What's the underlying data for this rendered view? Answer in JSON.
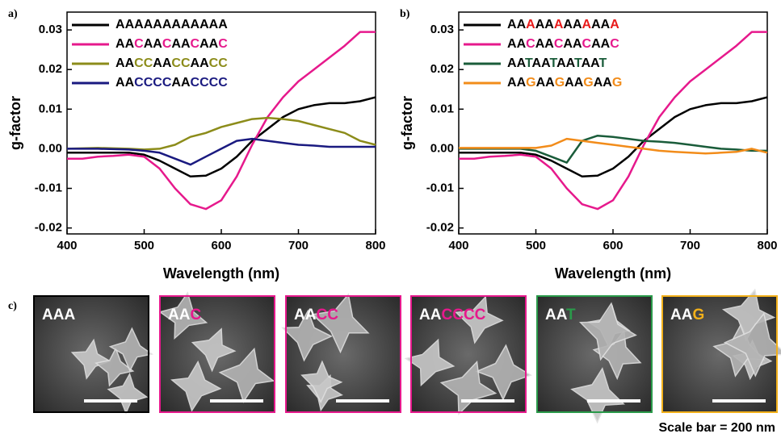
{
  "chart_data": [
    {
      "type": "line",
      "label": "a)",
      "xlabel": "Wavelength (nm)",
      "ylabel": "g-factor",
      "x": [
        400,
        420,
        440,
        460,
        480,
        500,
        520,
        540,
        560,
        580,
        600,
        620,
        640,
        660,
        680,
        700,
        720,
        740,
        760,
        780,
        800
      ],
      "xlim": [
        400,
        800
      ],
      "xticks": [
        400,
        500,
        600,
        700,
        800
      ],
      "ylim": [
        -0.0215,
        0.0345
      ],
      "yticks": [
        -0.02,
        -0.01,
        {
          "value": 0,
          "label": "0.00"
        },
        0.01,
        0.02,
        0.03
      ],
      "series": [
        {
          "name": "AAAAAAAAAAAA",
          "color": "#000000",
          "values": [
            -0.001,
            -0.001,
            -0.001,
            -0.001,
            -0.001,
            -0.0015,
            -0.003,
            -0.005,
            -0.007,
            -0.0068,
            -0.005,
            -0.002,
            0.002,
            0.005,
            0.008,
            0.01,
            0.011,
            0.0115,
            0.0115,
            0.012,
            0.013
          ]
        },
        {
          "name": "AACAACAACAAC",
          "color": "#e6198c",
          "values": [
            -0.0025,
            -0.0025,
            -0.002,
            -0.0018,
            -0.0015,
            -0.002,
            -0.005,
            -0.01,
            -0.014,
            -0.0152,
            -0.013,
            -0.007,
            0.001,
            0.008,
            0.013,
            0.017,
            0.02,
            0.023,
            0.026,
            0.0295,
            0.0295
          ]
        },
        {
          "name": "AACCAACCAACC",
          "color": "#8c8c1a",
          "values": [
            0,
            0.0001,
            0.0002,
            0.0001,
            0,
            -0.0002,
            0,
            0.001,
            0.003,
            0.004,
            0.0055,
            0.0065,
            0.0075,
            0.0078,
            0.0075,
            0.007,
            0.006,
            0.005,
            0.004,
            0.002,
            0.001
          ]
        },
        {
          "name": "AACCCCAACCCC",
          "color": "#1a1a80",
          "values": [
            0,
            0,
            0,
            -0.0001,
            -0.0002,
            -0.0005,
            -0.001,
            -0.0025,
            -0.004,
            -0.002,
            0,
            0.002,
            0.0025,
            0.002,
            0.0015,
            0.001,
            0.0008,
            0.0005,
            0.0005,
            0.0005,
            0.0005
          ]
        }
      ]
    },
    {
      "type": "line",
      "label": "b)",
      "xlabel": "Wavelength (nm)",
      "ylabel": "g-factor",
      "x": [
        400,
        420,
        440,
        460,
        480,
        500,
        520,
        540,
        560,
        580,
        600,
        620,
        640,
        660,
        680,
        700,
        720,
        740,
        760,
        780,
        800
      ],
      "xlim": [
        400,
        800
      ],
      "xticks": [
        400,
        500,
        600,
        700,
        800
      ],
      "ylim": [
        -0.0215,
        0.0345
      ],
      "yticks": [
        -0.02,
        -0.01,
        {
          "value": 0,
          "label": "0.00"
        },
        0.01,
        0.02,
        0.03
      ],
      "series": [
        {
          "name": "AAAAAAAAAAAA",
          "color": "#000000",
          "highlight_color": "#e81a1a",
          "values": [
            -0.001,
            -0.001,
            -0.001,
            -0.001,
            -0.001,
            -0.0015,
            -0.003,
            -0.005,
            -0.007,
            -0.0068,
            -0.005,
            -0.002,
            0.002,
            0.005,
            0.008,
            0.01,
            0.011,
            0.0115,
            0.0115,
            0.012,
            0.013
          ]
        },
        {
          "name": "AACAACAACAAC",
          "color": "#e6198c",
          "values": [
            -0.0025,
            -0.0025,
            -0.002,
            -0.0018,
            -0.0015,
            -0.002,
            -0.005,
            -0.01,
            -0.014,
            -0.0152,
            -0.013,
            -0.007,
            0.001,
            0.008,
            0.013,
            0.017,
            0.02,
            0.023,
            0.026,
            0.0295,
            0.0295
          ]
        },
        {
          "name": "AATAATAATAAT",
          "color": "#1a5c3a",
          "values": [
            0,
            0,
            0,
            0,
            0,
            -0.0005,
            -0.002,
            -0.0035,
            0.002,
            0.0033,
            0.003,
            0.0025,
            0.002,
            0.0018,
            0.0015,
            0.001,
            0.0005,
            0,
            -0.0002,
            -0.0005,
            -0.0005
          ]
        },
        {
          "name": "AAGAAGAAGAAG",
          "color": "#f28c1a",
          "values": [
            0.0002,
            0.0002,
            0.0002,
            0.0002,
            0.0002,
            0.0002,
            0.0008,
            0.0025,
            0.002,
            0.0015,
            0.001,
            0.0005,
            0,
            -0.0005,
            -0.0008,
            -0.001,
            -0.0012,
            -0.001,
            -0.0008,
            0,
            -0.001
          ]
        }
      ]
    }
  ],
  "micrographs": {
    "label": "c)",
    "note": "Scale bar = 200 nm",
    "panels": [
      {
        "label": "AAA",
        "color": "#000000"
      },
      {
        "label": "AAC",
        "color": "#e6198c"
      },
      {
        "label": "AACC",
        "color": "#e6198c"
      },
      {
        "label": "AACCCC",
        "color": "#e6198c"
      },
      {
        "label": "AAT",
        "color": "#2a9a4a"
      },
      {
        "label": "AAG",
        "color": "#f2b01a"
      }
    ]
  }
}
